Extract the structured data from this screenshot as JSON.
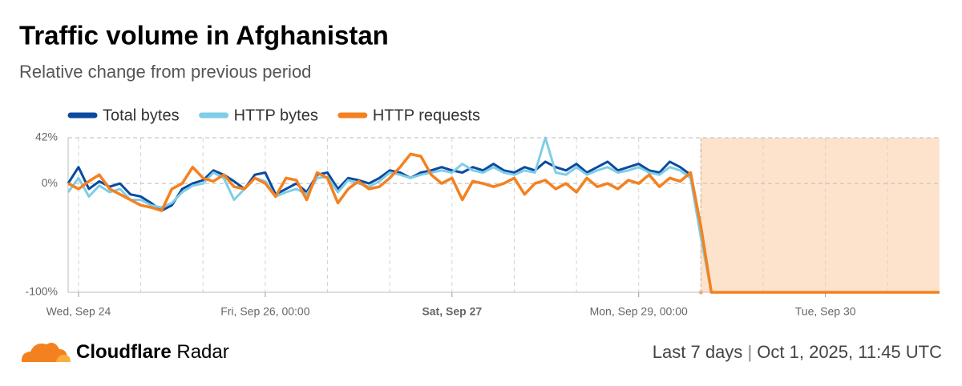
{
  "chart_data": {
    "type": "line",
    "title": "Traffic volume in Afghanistan",
    "subtitle": "Relative change from previous period",
    "x": [
      0,
      2,
      4,
      6,
      8,
      10,
      12,
      14,
      16,
      18,
      20,
      22,
      24,
      26,
      28,
      30,
      32,
      34,
      36,
      38,
      40,
      42,
      44,
      46,
      48,
      50,
      52,
      54,
      56,
      58,
      60,
      62,
      64,
      66,
      68,
      70,
      72,
      74,
      76,
      78,
      80,
      82,
      84,
      86,
      88,
      90,
      92,
      94,
      96,
      98,
      100,
      102,
      104,
      106,
      108,
      110,
      112,
      114,
      116,
      118,
      120,
      122,
      124,
      168
    ],
    "series": [
      {
        "name": "Total bytes",
        "color": "#0a4aa0",
        "values": [
          0,
          15,
          -5,
          2,
          -3,
          0,
          -10,
          -12,
          -18,
          -25,
          -20,
          -5,
          0,
          3,
          12,
          8,
          2,
          -5,
          8,
          10,
          -10,
          -5,
          0,
          -8,
          8,
          10,
          -5,
          5,
          3,
          0,
          5,
          12,
          10,
          5,
          10,
          12,
          15,
          12,
          10,
          15,
          12,
          18,
          12,
          10,
          15,
          12,
          20,
          15,
          12,
          18,
          10,
          15,
          20,
          12,
          15,
          18,
          12,
          10,
          20,
          15,
          8,
          -40,
          -100,
          -100
        ]
      },
      {
        "name": "HTTP bytes",
        "color": "#7fcde6",
        "values": [
          -8,
          5,
          -12,
          -2,
          -8,
          -5,
          -15,
          -15,
          -20,
          -22,
          -18,
          -8,
          -2,
          0,
          10,
          5,
          -15,
          -5,
          5,
          2,
          -12,
          -8,
          -5,
          -10,
          5,
          6,
          -8,
          3,
          0,
          -3,
          2,
          10,
          8,
          5,
          8,
          10,
          12,
          10,
          18,
          12,
          10,
          15,
          10,
          8,
          12,
          10,
          42,
          10,
          8,
          15,
          8,
          12,
          15,
          10,
          12,
          15,
          10,
          8,
          15,
          12,
          5,
          -50,
          -100,
          -100
        ]
      },
      {
        "name": "HTTP requests",
        "color": "#f48120",
        "values": [
          0,
          -5,
          2,
          8,
          -5,
          -10,
          -15,
          -20,
          -22,
          -25,
          -5,
          0,
          15,
          5,
          2,
          8,
          -3,
          -5,
          5,
          0,
          -12,
          5,
          3,
          -15,
          10,
          5,
          -18,
          -5,
          2,
          -5,
          -3,
          5,
          15,
          27,
          25,
          8,
          0,
          5,
          -15,
          2,
          0,
          -3,
          0,
          5,
          -10,
          0,
          3,
          -5,
          0,
          -8,
          5,
          -3,
          0,
          -5,
          3,
          0,
          8,
          -3,
          5,
          2,
          10,
          -40,
          -100,
          -100
        ]
      }
    ],
    "xlim": [
      0,
      168
    ],
    "xticks": [
      {
        "value": 2,
        "label": "Wed, Sep 24"
      },
      {
        "value": 38,
        "label": "Fri, Sep 26, 00:00"
      },
      {
        "value": 74,
        "label": "Sat, Sep 27",
        "bold": true
      },
      {
        "value": 110,
        "label": "Mon, Sep 29, 00:00"
      },
      {
        "value": 146,
        "label": "Tue, Sep 30"
      }
    ],
    "x_minor_ticks": [
      14,
      26,
      50,
      62,
      86,
      98,
      122,
      134,
      158
    ],
    "ylim": [
      -100,
      42
    ],
    "yticks": [
      {
        "value": 42,
        "label": "42%"
      },
      {
        "value": 0,
        "label": "0%"
      },
      {
        "value": -100,
        "label": "-100%"
      }
    ],
    "grid": true,
    "highlight": {
      "from": 122,
      "to": 168,
      "color": "#fde3cc"
    },
    "footer": {
      "brand": "Cloudflare",
      "brand_suffix": "Radar",
      "period": "Last 7 days",
      "timestamp": "Oct 1, 2025, 11:45 UTC"
    }
  }
}
